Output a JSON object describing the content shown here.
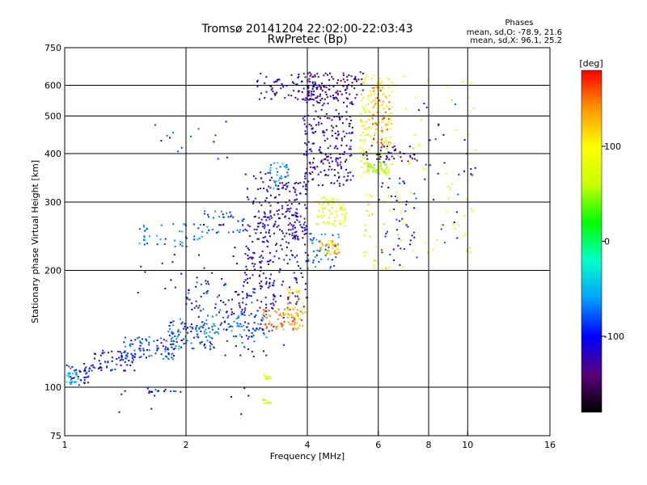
{
  "chart_data": {
    "type": "scatter",
    "title": "Tromsø 20141204 22:02:00-22:03:43",
    "subtitle": "RwPretec (Bp)",
    "stats_header": "Phases",
    "stats_lines": [
      "mean, sd,O: -78.9, 21.6",
      "mean, sd,X:  96.1, 25.2"
    ],
    "xlabel": "Frequency [MHz]",
    "ylabel": "Stationary phase Virtual Height [km]",
    "x_scale": "log",
    "y_scale": "log",
    "xlim": [
      1,
      16
    ],
    "ylim": [
      75,
      750
    ],
    "x_ticks": [
      {
        "value": 1,
        "label": "1"
      },
      {
        "value": 2,
        "label": "2"
      },
      {
        "value": 4,
        "label": "4"
      },
      {
        "value": 6,
        "label": "6"
      },
      {
        "value": 8,
        "label": "8"
      },
      {
        "value": 10,
        "label": "10"
      },
      {
        "value": 16,
        "label": "16"
      }
    ],
    "y_ticks": [
      {
        "value": 75,
        "label": "75"
      },
      {
        "value": 100,
        "label": "100"
      },
      {
        "value": 200,
        "label": "200"
      },
      {
        "value": 300,
        "label": "300"
      },
      {
        "value": 400,
        "label": "400"
      },
      {
        "value": 500,
        "label": "500"
      },
      {
        "value": 600,
        "label": "600"
      },
      {
        "value": 750,
        "label": "750"
      }
    ],
    "x_gridlines": [
      2,
      4,
      6,
      8,
      10
    ],
    "y_gridlines": [
      100,
      200,
      300,
      400,
      500,
      600
    ],
    "grid": true,
    "colorbar": {
      "label": "[deg]",
      "range": [
        -180,
        180
      ],
      "ticks": [
        {
          "value": 100,
          "label": "100"
        },
        {
          "value": 0,
          "label": "0"
        },
        {
          "value": -100,
          "label": "-100"
        }
      ],
      "colors": [
        "#000000",
        "#5a007a",
        "#0000ff",
        "#00a0ff",
        "#00ffc8",
        "#00ff00",
        "#c8ff00",
        "#ffff00",
        "#ff9600",
        "#ff0000"
      ]
    },
    "clusters": [
      {
        "phase": -95,
        "x_range": [
          1.0,
          1.15
        ],
        "y_range": [
          100,
          115
        ],
        "count": 40
      },
      {
        "phase": -55,
        "x_range": [
          1.0,
          1.1
        ],
        "y_range": [
          102,
          112
        ],
        "count": 20
      },
      {
        "phase": -100,
        "x_range": [
          1.15,
          1.5
        ],
        "y_range": [
          110,
          125
        ],
        "count": 70
      },
      {
        "phase": -85,
        "x_range": [
          1.4,
          1.9
        ],
        "y_range": [
          118,
          135
        ],
        "count": 80
      },
      {
        "phase": -80,
        "x_range": [
          1.8,
          2.4
        ],
        "y_range": [
          125,
          150
        ],
        "count": 90
      },
      {
        "phase": -70,
        "x_range": [
          2.2,
          3.2
        ],
        "y_range": [
          130,
          155
        ],
        "count": 60
      },
      {
        "phase": -95,
        "x_range": [
          2.0,
          3.0
        ],
        "y_range": [
          140,
          190
        ],
        "count": 80
      },
      {
        "phase": -110,
        "x_range": [
          2.5,
          3.5
        ],
        "y_range": [
          120,
          180
        ],
        "count": 60
      },
      {
        "phase": -65,
        "x_range": [
          1.5,
          2.2
        ],
        "y_range": [
          230,
          265
        ],
        "count": 45
      },
      {
        "phase": -80,
        "x_range": [
          2.2,
          2.8
        ],
        "y_range": [
          250,
          285
        ],
        "count": 40
      },
      {
        "phase": -115,
        "x_range": [
          2.8,
          3.3
        ],
        "y_range": [
          180,
          360
        ],
        "count": 110
      },
      {
        "phase": -110,
        "x_range": [
          3.0,
          4.0
        ],
        "y_range": [
          160,
          280
        ],
        "count": 130
      },
      {
        "phase": -60,
        "x_range": [
          3.2,
          3.6
        ],
        "y_range": [
          320,
          380
        ],
        "count": 35
      },
      {
        "phase": -115,
        "x_range": [
          3.3,
          4.0
        ],
        "y_range": [
          240,
          340
        ],
        "count": 100
      },
      {
        "phase": 145,
        "x_range": [
          3.1,
          3.9
        ],
        "y_range": [
          140,
          160
        ],
        "count": 70
      },
      {
        "phase": 115,
        "x_range": [
          3.5,
          4.0
        ],
        "y_range": [
          150,
          180
        ],
        "count": 35
      },
      {
        "phase": -120,
        "x_range": [
          3.9,
          5.2
        ],
        "y_range": [
          330,
          600
        ],
        "count": 240
      },
      {
        "phase": -115,
        "x_range": [
          3.0,
          4.2
        ],
        "y_range": [
          550,
          650
        ],
        "count": 70
      },
      {
        "phase": -130,
        "x_range": [
          4.0,
          5.5
        ],
        "y_range": [
          550,
          650
        ],
        "count": 90
      },
      {
        "phase": 80,
        "x_range": [
          4.2,
          5.0
        ],
        "y_range": [
          260,
          310
        ],
        "count": 70
      },
      {
        "phase": 125,
        "x_range": [
          4.3,
          4.8
        ],
        "y_range": [
          220,
          240
        ],
        "count": 45
      },
      {
        "phase": -75,
        "x_range": [
          4.0,
          4.8
        ],
        "y_range": [
          200,
          250
        ],
        "count": 40
      },
      {
        "phase": 95,
        "x_range": [
          5.4,
          6.5
        ],
        "y_range": [
          350,
          650
        ],
        "count": 160
      },
      {
        "phase": 55,
        "x_range": [
          5.6,
          6.3
        ],
        "y_range": [
          355,
          380
        ],
        "count": 40
      },
      {
        "phase": 150,
        "x_range": [
          5.8,
          6.4
        ],
        "y_range": [
          420,
          600
        ],
        "count": 50
      },
      {
        "phase": -130,
        "x_range": [
          5.5,
          7.5
        ],
        "y_range": [
          380,
          420
        ],
        "count": 45
      },
      {
        "phase": -100,
        "x_range": [
          6.0,
          7.5
        ],
        "y_range": [
          200,
          350
        ],
        "count": 45
      },
      {
        "phase": 100,
        "x_range": [
          5.5,
          7.0
        ],
        "y_range": [
          200,
          320
        ],
        "count": 40
      },
      {
        "phase": 90,
        "x_range": [
          6.5,
          10.5
        ],
        "y_range": [
          220,
          640
        ],
        "count": 55
      },
      {
        "phase": -100,
        "x_range": [
          7.5,
          10.5
        ],
        "y_range": [
          230,
          560
        ],
        "count": 30
      },
      {
        "phase": -100,
        "x_range": [
          1.6,
          1.95
        ],
        "y_range": [
          97,
          99
        ],
        "count": 12
      },
      {
        "phase": 80,
        "x_range": [
          3.1,
          3.25
        ],
        "y_range": [
          105,
          108
        ],
        "count": 10
      },
      {
        "phase": 60,
        "x_range": [
          3.1,
          3.25
        ],
        "y_range": [
          90,
          93
        ],
        "count": 10
      },
      {
        "phase": -110,
        "x_range": [
          1.3,
          3.0
        ],
        "y_range": [
          85,
          100
        ],
        "count": 12
      },
      {
        "phase": -90,
        "x_range": [
          1.6,
          2.7
        ],
        "y_range": [
          380,
          500
        ],
        "count": 14
      },
      {
        "phase": -120,
        "x_range": [
          1.4,
          3.0
        ],
        "y_range": [
          160,
          230
        ],
        "count": 25
      }
    ]
  }
}
